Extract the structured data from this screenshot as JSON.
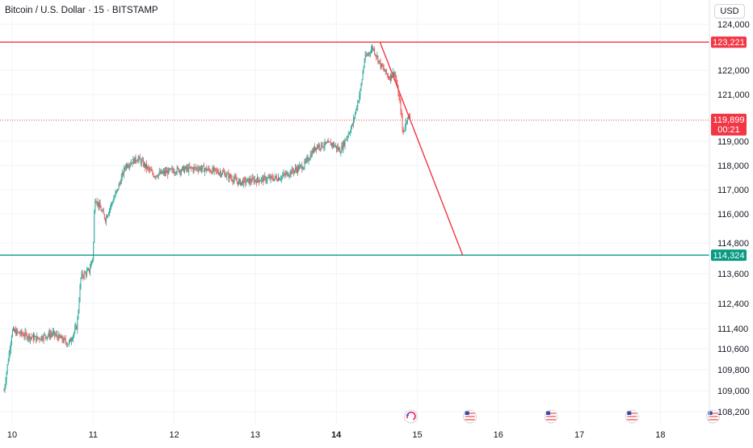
{
  "header": {
    "symbol_title": "Bitcoin / U.S. Dollar · 15 · BITSTAMP",
    "currency_button": "USD"
  },
  "colors": {
    "up": "#26a69a",
    "down": "#ef5350",
    "resistance": "#f23645",
    "support": "#089981",
    "current_price": "#f23645",
    "grid": "#f0f3fa",
    "text": "#131722"
  },
  "chart_data": {
    "type": "candlestick",
    "symbol": "BTCUSD",
    "interval": "15",
    "exchange": "BITSTAMP",
    "x_ticks": [
      "10",
      "11",
      "12",
      "13",
      "14",
      "15",
      "16",
      "17",
      "18"
    ],
    "x_tick_bold": "14",
    "y_ticks": [
      124000,
      122000,
      121000,
      119000,
      118000,
      117000,
      116000,
      114800,
      113600,
      112400,
      111400,
      110600,
      109800,
      109000,
      108200
    ],
    "y_tick_labels": [
      "124,000",
      "122,000",
      "121,000",
      "119,000",
      "118,000",
      "117,000",
      "116,000",
      "114,800",
      "113,600",
      "112,400",
      "111,400",
      "110,600",
      "109,800",
      "109,000",
      "108,200"
    ],
    "y_range": [
      107800,
      124700
    ],
    "close_path": [
      {
        "t": 9.9,
        "p": 109000
      },
      {
        "t": 10.0,
        "p": 111300
      },
      {
        "t": 10.1,
        "p": 111200
      },
      {
        "t": 10.3,
        "p": 111000
      },
      {
        "t": 10.5,
        "p": 111200
      },
      {
        "t": 10.7,
        "p": 110800
      },
      {
        "t": 10.8,
        "p": 111500
      },
      {
        "t": 10.85,
        "p": 113500
      },
      {
        "t": 10.95,
        "p": 113700
      },
      {
        "t": 11.0,
        "p": 114300
      },
      {
        "t": 11.02,
        "p": 116700
      },
      {
        "t": 11.15,
        "p": 115800
      },
      {
        "t": 11.3,
        "p": 117000
      },
      {
        "t": 11.4,
        "p": 118000
      },
      {
        "t": 11.55,
        "p": 118300
      },
      {
        "t": 11.75,
        "p": 117600
      },
      {
        "t": 12.0,
        "p": 117800
      },
      {
        "t": 12.3,
        "p": 117900
      },
      {
        "t": 12.6,
        "p": 117700
      },
      {
        "t": 12.8,
        "p": 117300
      },
      {
        "t": 13.0,
        "p": 117400
      },
      {
        "t": 13.3,
        "p": 117500
      },
      {
        "t": 13.6,
        "p": 118000
      },
      {
        "t": 13.75,
        "p": 118800
      },
      {
        "t": 13.95,
        "p": 118900
      },
      {
        "t": 14.05,
        "p": 118600
      },
      {
        "t": 14.2,
        "p": 119700
      },
      {
        "t": 14.3,
        "p": 121200
      },
      {
        "t": 14.35,
        "p": 122500
      },
      {
        "t": 14.45,
        "p": 123000
      },
      {
        "t": 14.55,
        "p": 122200
      },
      {
        "t": 14.65,
        "p": 121700
      },
      {
        "t": 14.72,
        "p": 121900
      },
      {
        "t": 14.8,
        "p": 120300
      },
      {
        "t": 14.82,
        "p": 119300
      },
      {
        "t": 14.88,
        "p": 120100
      },
      {
        "t": 14.92,
        "p": 119899
      }
    ],
    "levels": [
      {
        "name": "resistance",
        "value": 123221,
        "label": "123,221"
      },
      {
        "name": "support",
        "value": 114324,
        "label": "114,324"
      }
    ],
    "current_price": {
      "value": 119899,
      "label": "119,899",
      "countdown": "00:21"
    },
    "trendline": {
      "start": {
        "t": 14.54,
        "p": 123221
      },
      "end": {
        "t": 15.56,
        "p": 114324
      }
    },
    "event_markers": [
      {
        "t": 14.92,
        "icon": "crypto-event-icon"
      },
      {
        "t": 15.65,
        "icon": "us-flag-icon"
      },
      {
        "t": 16.65,
        "icon": "us-flag-icon"
      },
      {
        "t": 17.65,
        "icon": "us-flag-icon"
      },
      {
        "t": 18.65,
        "icon": "us-flag-icon"
      }
    ]
  }
}
